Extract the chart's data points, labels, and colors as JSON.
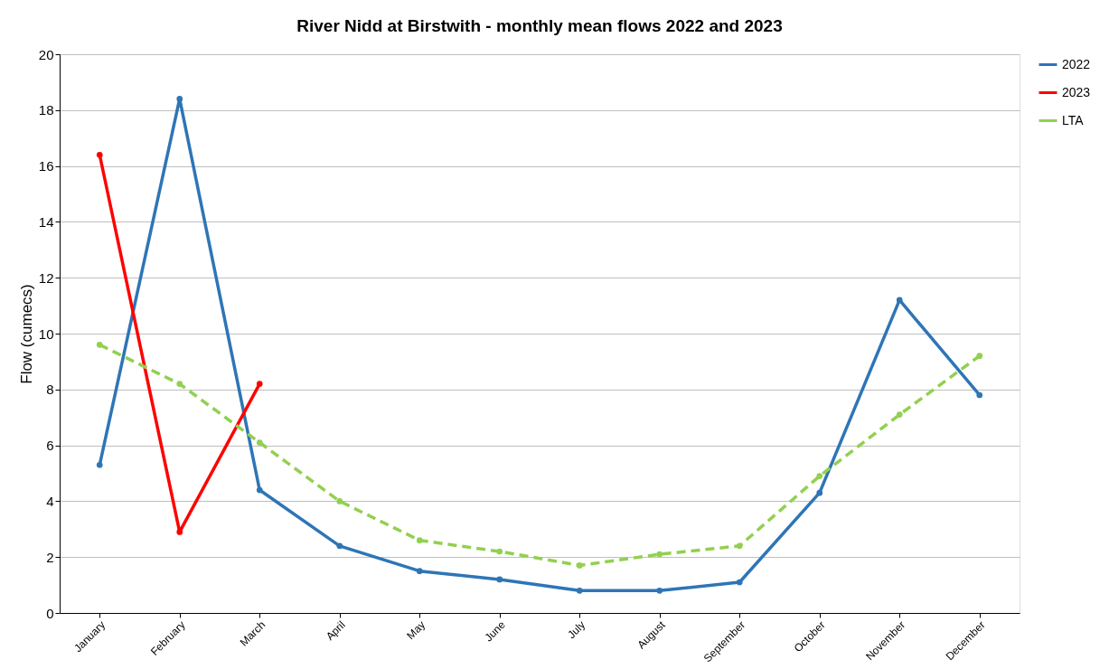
{
  "chart_data": {
    "type": "line",
    "title": "River Nidd at Birstwith - monthly mean flows 2022 and 2023",
    "ylabel": "Flow (cumecs)",
    "categories": [
      "January",
      "February",
      "March",
      "April",
      "May",
      "June",
      "July",
      "August",
      "September",
      "October",
      "November",
      "December"
    ],
    "series": [
      {
        "name": "2022",
        "color": "#2e75b6",
        "line_style": "solid",
        "values": [
          5.3,
          18.4,
          4.4,
          2.4,
          1.5,
          1.2,
          0.8,
          0.8,
          1.1,
          4.3,
          11.2,
          7.8
        ]
      },
      {
        "name": "2023",
        "color": "#ff0000",
        "line_style": "solid",
        "values": [
          16.4,
          2.9,
          8.2,
          null,
          null,
          null,
          null,
          null,
          null,
          null,
          null,
          null
        ]
      },
      {
        "name": "LTA",
        "color": "#92d050",
        "line_style": "dashed",
        "values": [
          9.6,
          8.2,
          6.1,
          4.0,
          2.6,
          2.2,
          1.7,
          2.1,
          2.4,
          4.9,
          7.1,
          9.2
        ]
      }
    ],
    "ylim": [
      0,
      20
    ],
    "yticks": [
      0,
      2,
      4,
      6,
      8,
      10,
      12,
      14,
      16,
      18,
      20
    ],
    "grid": "y",
    "legend": "right",
    "marker": "circle"
  }
}
